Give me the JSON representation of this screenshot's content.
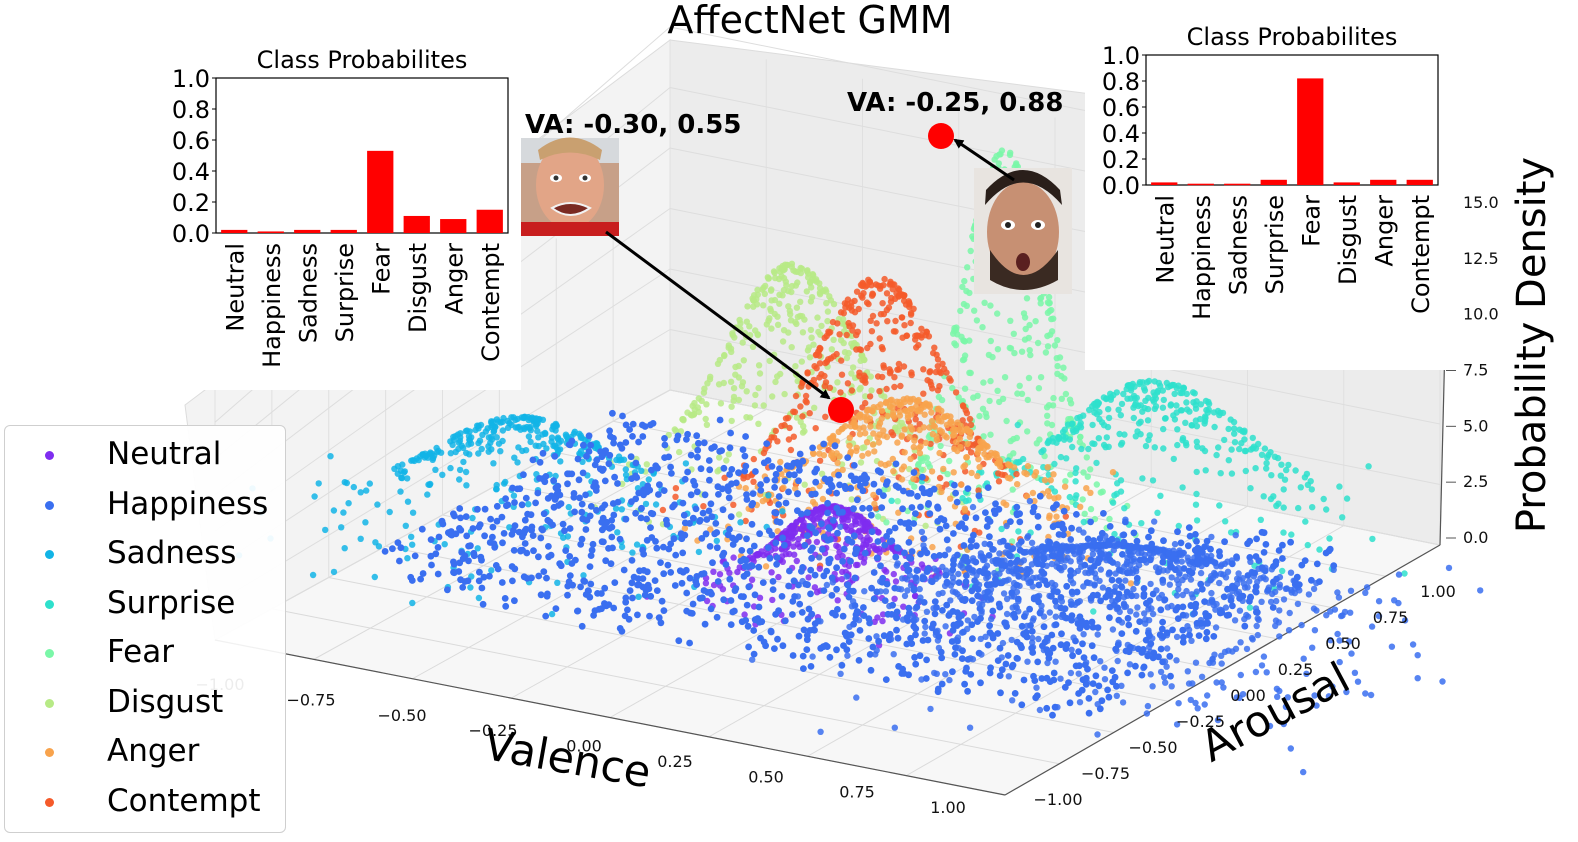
{
  "chart_data": {
    "type": "scatter",
    "title": "AffectNet GMM",
    "xlabel": "Valence",
    "ylabel": "Arousal",
    "zlabel": "Probability Density",
    "x_ticks": [
      "−1.00",
      "−0.75",
      "−0.50",
      "−0.25",
      "0.00",
      "0.25",
      "0.50",
      "0.75",
      "1.00"
    ],
    "y_ticks": [
      "−1.00",
      "−0.75",
      "−0.50",
      "−0.25",
      "0.00",
      "0.25",
      "0.50",
      "0.75",
      "1.00"
    ],
    "z_ticks": [
      "0.0",
      "2.5",
      "5.0",
      "7.5",
      "10.0",
      "12.5",
      "15.0"
    ],
    "xlim": [
      -1.0,
      1.0
    ],
    "ylim": [
      -1.0,
      1.0
    ],
    "zlim": [
      0,
      17
    ],
    "legend": {
      "placement": "lower-left",
      "entries": [
        {
          "name": "Neutral",
          "color": "#7f2df0"
        },
        {
          "name": "Happiness",
          "color": "#3a6ff0"
        },
        {
          "name": "Sadness",
          "color": "#12b4e6"
        },
        {
          "name": "Surprise",
          "color": "#2ee0cc"
        },
        {
          "name": "Fear",
          "color": "#7af7a8"
        },
        {
          "name": "Disgust",
          "color": "#b7ea86"
        },
        {
          "name": "Anger",
          "color": "#f8a34c"
        },
        {
          "name": "Contempt",
          "color": "#f55a2a"
        }
      ]
    },
    "peaks": [
      {
        "class": "Fear",
        "valence": 0.1,
        "arousal": 0.6,
        "peak_density": 15.5
      },
      {
        "class": "Contempt",
        "valence": -0.2,
        "arousal": 0.55,
        "peak_density": 9.5
      },
      {
        "class": "Disgust",
        "valence": -0.45,
        "arousal": 0.6,
        "peak_density": 9.0
      },
      {
        "class": "Surprise",
        "valence": 0.4,
        "arousal": 0.75,
        "peak_density": 6.0
      },
      {
        "class": "Sadness",
        "valence": -0.8,
        "arousal": 0.0,
        "peak_density": 4.5
      },
      {
        "class": "Neutral",
        "valence": 0.0,
        "arousal": 0.0,
        "peak_density": 3.5
      },
      {
        "class": "Happiness",
        "valence": 0.65,
        "arousal": 0.1,
        "peak_density": 3.0
      }
    ],
    "annotations": [
      {
        "text": "VA: -0.30, 0.55",
        "valence": -0.3,
        "arousal": 0.55
      },
      {
        "text": "VA: -0.25, 0.88",
        "valence": -0.25,
        "arousal": 0.88
      }
    ],
    "insets": [
      {
        "type": "bar",
        "title": "Class Probabilites",
        "categories": [
          "Neutral",
          "Happiness",
          "Sadness",
          "Surprise",
          "Fear",
          "Disgust",
          "Anger",
          "Contempt"
        ],
        "values": [
          0.02,
          0.01,
          0.02,
          0.02,
          0.53,
          0.11,
          0.09,
          0.15
        ],
        "ylim": [
          0,
          1.0
        ],
        "y_ticks": [
          "0.0",
          "0.2",
          "0.4",
          "0.6",
          "0.8",
          "1.0"
        ],
        "bar_color": "#ff0000",
        "placement": "top-left"
      },
      {
        "type": "bar",
        "title": "Class Probabilites",
        "categories": [
          "Neutral",
          "Happiness",
          "Sadness",
          "Surprise",
          "Fear",
          "Disgust",
          "Anger",
          "Contempt"
        ],
        "values": [
          0.02,
          0.01,
          0.01,
          0.04,
          0.82,
          0.02,
          0.04,
          0.04
        ],
        "ylim": [
          0,
          1.0
        ],
        "y_ticks": [
          "0.0",
          "0.2",
          "0.4",
          "0.6",
          "0.8",
          "1.0"
        ],
        "bar_color": "#ff0000",
        "placement": "top-right"
      }
    ]
  }
}
